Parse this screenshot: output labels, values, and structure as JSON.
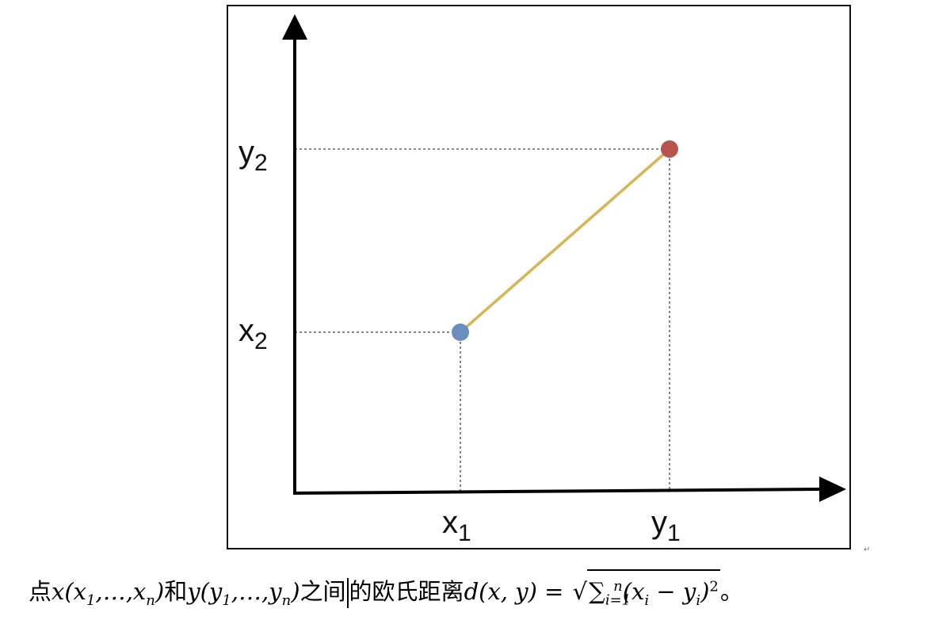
{
  "diagram": {
    "y_axis_labels": [
      {
        "main": "y",
        "sub": "2"
      },
      {
        "main": "x",
        "sub": "2"
      }
    ],
    "x_axis_labels": [
      {
        "main": "x",
        "sub": "1"
      },
      {
        "main": "y",
        "sub": "1"
      }
    ],
    "colors": {
      "point_x": "#6c8ebf",
      "point_y": "#b85450",
      "segment": "#d6b656",
      "axes": "#000000"
    }
  },
  "paragraph_mark": "↵",
  "caption": {
    "t1": "点",
    "x_expr": "x(x",
    "x_sub1": "1",
    "x_mid": ",…,x",
    "x_subn": "n",
    "x_close": ")",
    "t2": "和",
    "y_expr": "y(y",
    "y_sub1": "1",
    "y_mid": ",…,y",
    "y_subn": "n",
    "y_close": ")",
    "t3a": "之间",
    "t3b": "的欧氏距离",
    "d_expr": "d(x, y) = ",
    "sum_sym": "∑",
    "sum_lower": "i=1",
    "sum_upper": "n",
    "term_open": "(x",
    "term_i1": "i",
    "term_minus": " − y",
    "term_i2": "i",
    "term_close": ")",
    "term_pow": "2",
    "t4": "。"
  }
}
